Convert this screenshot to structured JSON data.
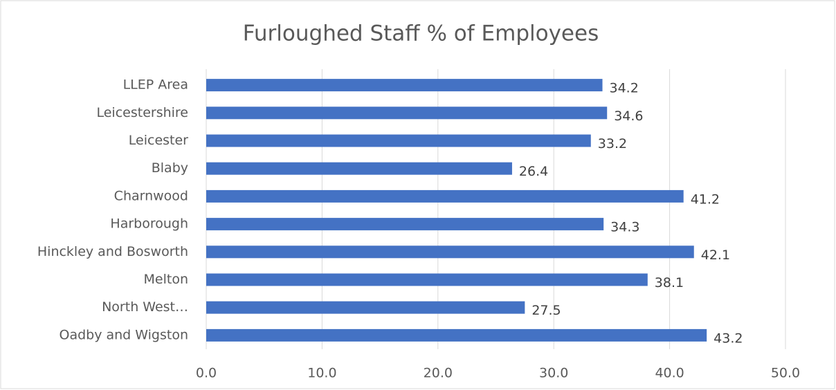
{
  "chart_data": {
    "type": "bar",
    "orientation": "horizontal",
    "title": "Furloughed Staff % of Employees",
    "categories": [
      "LLEP Area",
      "Leicestershire",
      "Leicester",
      "Blaby",
      "Charnwood",
      "Harborough",
      "Hinckley and Bosworth",
      "Melton",
      "North West…",
      "Oadby and Wigston"
    ],
    "values": [
      34.2,
      34.6,
      33.2,
      26.4,
      41.2,
      34.3,
      42.1,
      38.1,
      27.5,
      43.2
    ],
    "color": "#4472c4",
    "xlim": [
      0,
      50
    ],
    "xticks": [
      {
        "value": 0,
        "label": "0.0"
      },
      {
        "value": 10,
        "label": "10.0"
      },
      {
        "value": 20,
        "label": "20.0"
      },
      {
        "value": 30,
        "label": "30.0"
      },
      {
        "value": 40,
        "label": "40.0"
      },
      {
        "value": 50,
        "label": "50.0"
      }
    ],
    "grid": true,
    "data_labels": true
  }
}
